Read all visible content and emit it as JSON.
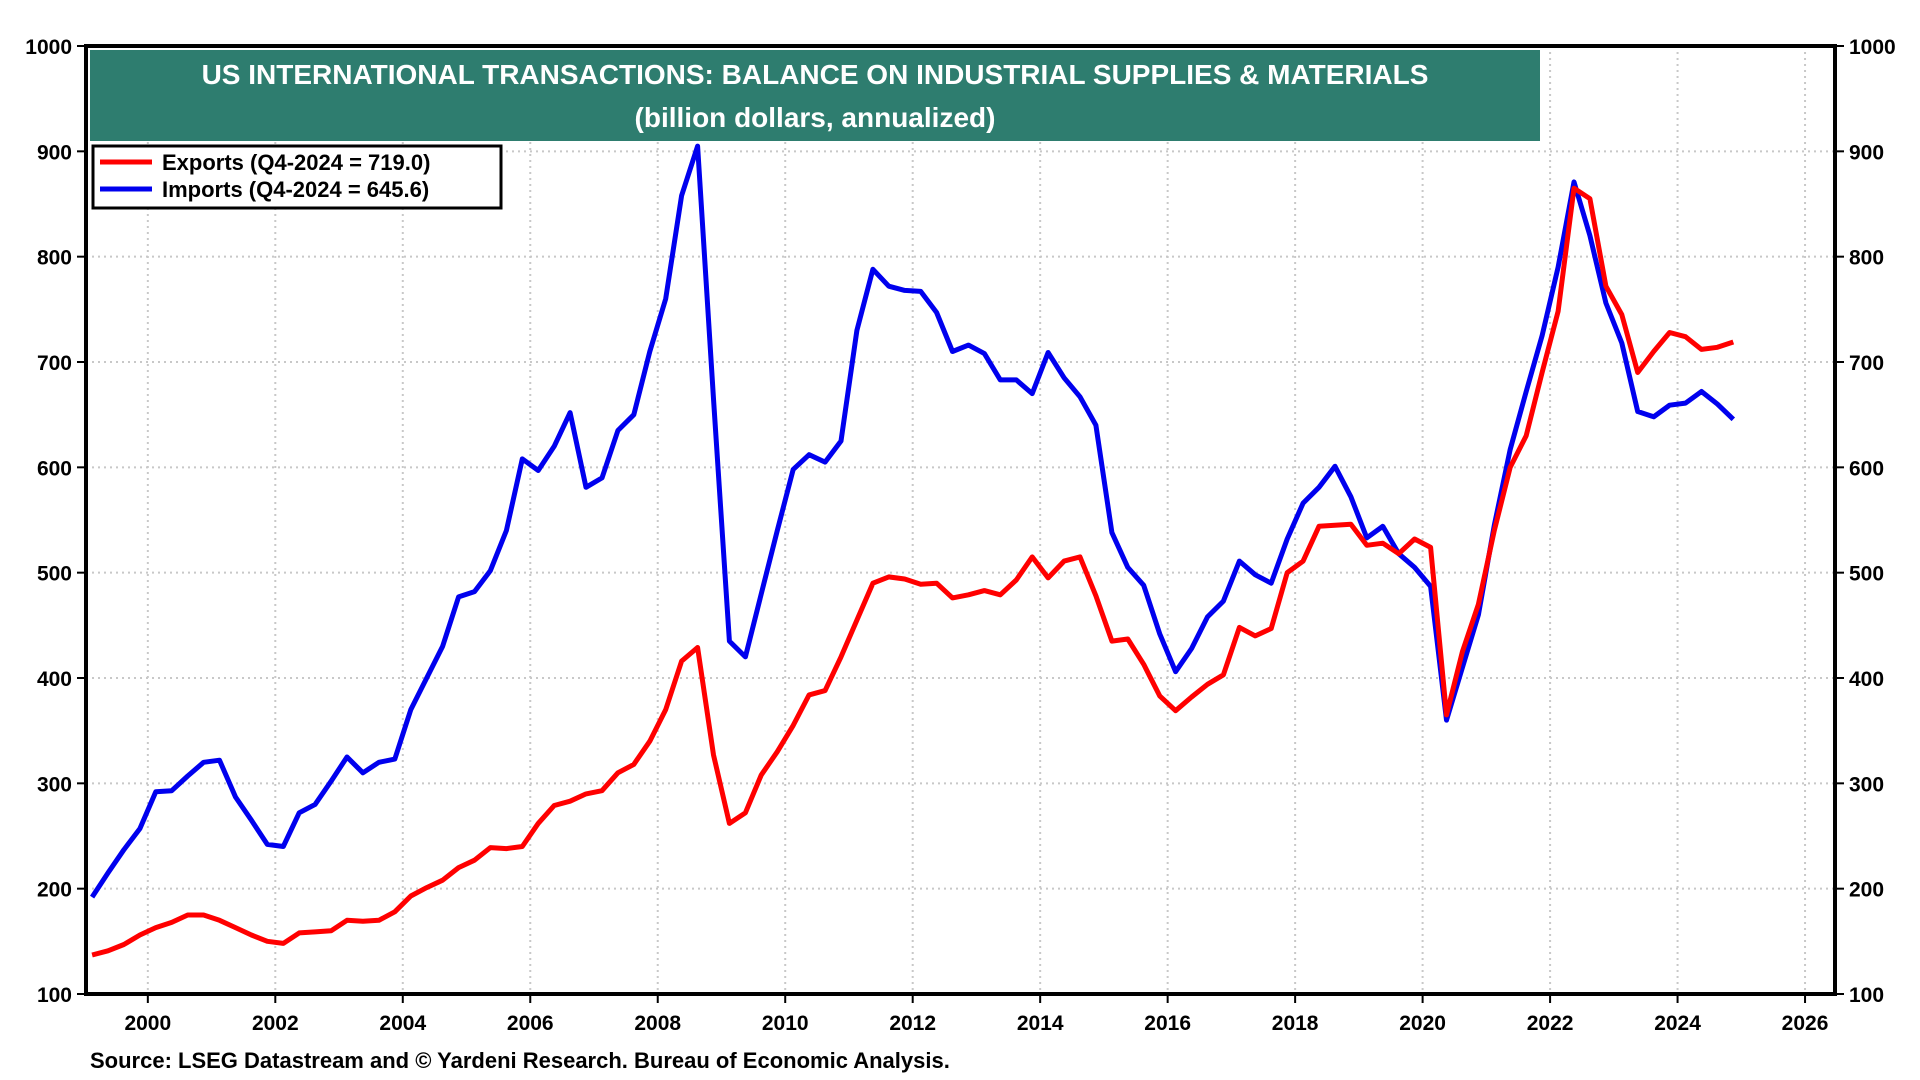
{
  "chart_data": {
    "type": "line",
    "title": "US INTERNATIONAL TRANSACTIONS: BALANCE ON INDUSTRIAL SUPPLIES & MATERIALS",
    "subtitle": "(billion dollars, annualized)",
    "xlabel": "",
    "ylabel": "",
    "frequency": "quarterly",
    "x_start": "Q1-1999",
    "x_end": "Q4-2024",
    "xlim": [
      1999.03,
      2026.47
    ],
    "ylim": [
      100,
      1000
    ],
    "x_ticks": [
      "2000",
      "2002",
      "2004",
      "2006",
      "2008",
      "2010",
      "2012",
      "2014",
      "2016",
      "2018",
      "2020",
      "2022",
      "2024",
      "2026"
    ],
    "y_ticks_left": [
      "100",
      "200",
      "300",
      "400",
      "500",
      "600",
      "700",
      "800",
      "900",
      "1000"
    ],
    "y_ticks_right": [
      "100",
      "200",
      "300",
      "400",
      "500",
      "600",
      "700",
      "800",
      "900",
      "1000"
    ],
    "grid": true,
    "grid_style": "dotted",
    "legend_placement": "top-left",
    "source": "Source: LSEG Datastream and © Yardeni Research. Bureau of Economic Analysis.",
    "series": [
      {
        "name": "Exports",
        "legend_label": "Exports (Q4-2024 = 719.0)",
        "color": "#ff0000",
        "values": [
          137,
          141,
          147,
          156,
          163,
          168,
          175,
          175,
          170,
          163,
          156,
          150,
          148,
          158,
          159,
          160,
          170,
          169,
          170,
          178,
          193,
          201,
          208,
          220,
          227,
          239,
          238,
          240,
          262,
          279,
          283,
          290,
          293,
          310,
          318,
          340,
          370,
          416,
          429,
          327,
          262,
          272,
          308,
          330,
          355,
          384,
          388,
          420,
          455,
          490,
          496,
          494,
          489,
          490,
          476,
          479,
          483,
          479,
          493,
          515,
          495,
          511,
          515,
          478,
          435,
          437,
          413,
          383,
          369,
          382,
          394,
          403,
          448,
          440,
          447,
          500,
          511,
          544,
          545,
          546,
          526,
          528,
          518,
          532,
          524,
          365,
          425,
          470,
          540,
          600,
          630,
          690,
          748,
          865,
          855,
          772,
          745,
          690,
          710,
          728,
          724,
          712,
          714,
          719.0
        ]
      },
      {
        "name": "Imports",
        "legend_label": "Imports (Q4-2024 = 645.6)",
        "color": "#0000ee",
        "values": [
          192,
          215,
          237,
          257,
          292,
          293,
          307,
          320,
          322,
          287,
          265,
          242,
          240,
          272,
          280,
          302,
          325,
          310,
          320,
          323,
          370,
          400,
          430,
          477,
          482,
          502,
          540,
          608,
          597,
          620,
          652,
          581,
          590,
          635,
          650,
          710,
          760,
          858,
          905,
          665,
          435,
          420,
          480,
          540,
          598,
          612,
          605,
          625,
          730,
          788,
          772,
          768,
          767,
          747,
          710,
          716,
          708,
          683,
          683,
          670,
          709,
          685,
          667,
          640,
          538,
          505,
          488,
          442,
          406,
          428,
          458,
          473,
          511,
          498,
          490,
          532,
          566,
          581,
          601,
          572,
          533,
          544,
          518,
          505,
          487,
          360,
          410,
          460,
          545,
          617,
          672,
          725,
          790,
          871,
          820,
          756,
          718,
          653,
          648,
          659,
          661,
          672,
          660,
          645.6
        ]
      }
    ]
  },
  "colors": {
    "title_box": "#2e7d6f",
    "title_text": "#ffffff",
    "axis": "#000000",
    "grid": "#c8c8c8",
    "background": "#ffffff"
  }
}
